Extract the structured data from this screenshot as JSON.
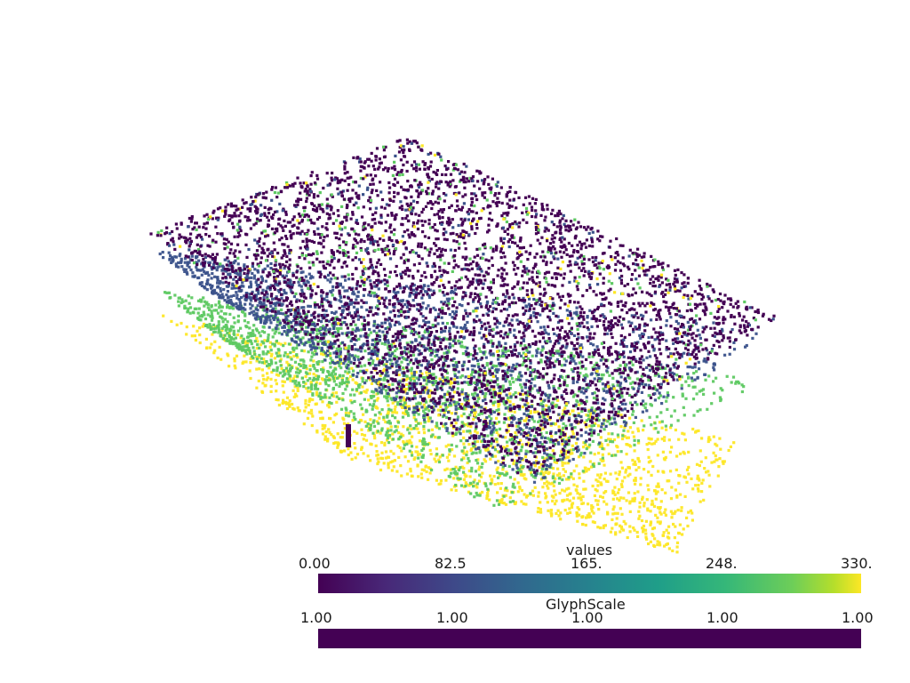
{
  "scene": {
    "background": "#ffffff",
    "colormap": "viridis",
    "layer_colors": {
      "top": "#440154",
      "second": "#3b528b",
      "third": "#5ec962",
      "bottom": "#fde725"
    }
  },
  "scalar_bars": {
    "values": {
      "title": "values",
      "ticks": [
        "0.00",
        "82.5",
        "165.",
        "248.",
        "330."
      ]
    },
    "glyph_scale": {
      "title": "GlyphScale",
      "ticks": [
        "1.00",
        "1.00",
        "1.00",
        "1.00",
        "1.00"
      ]
    }
  }
}
